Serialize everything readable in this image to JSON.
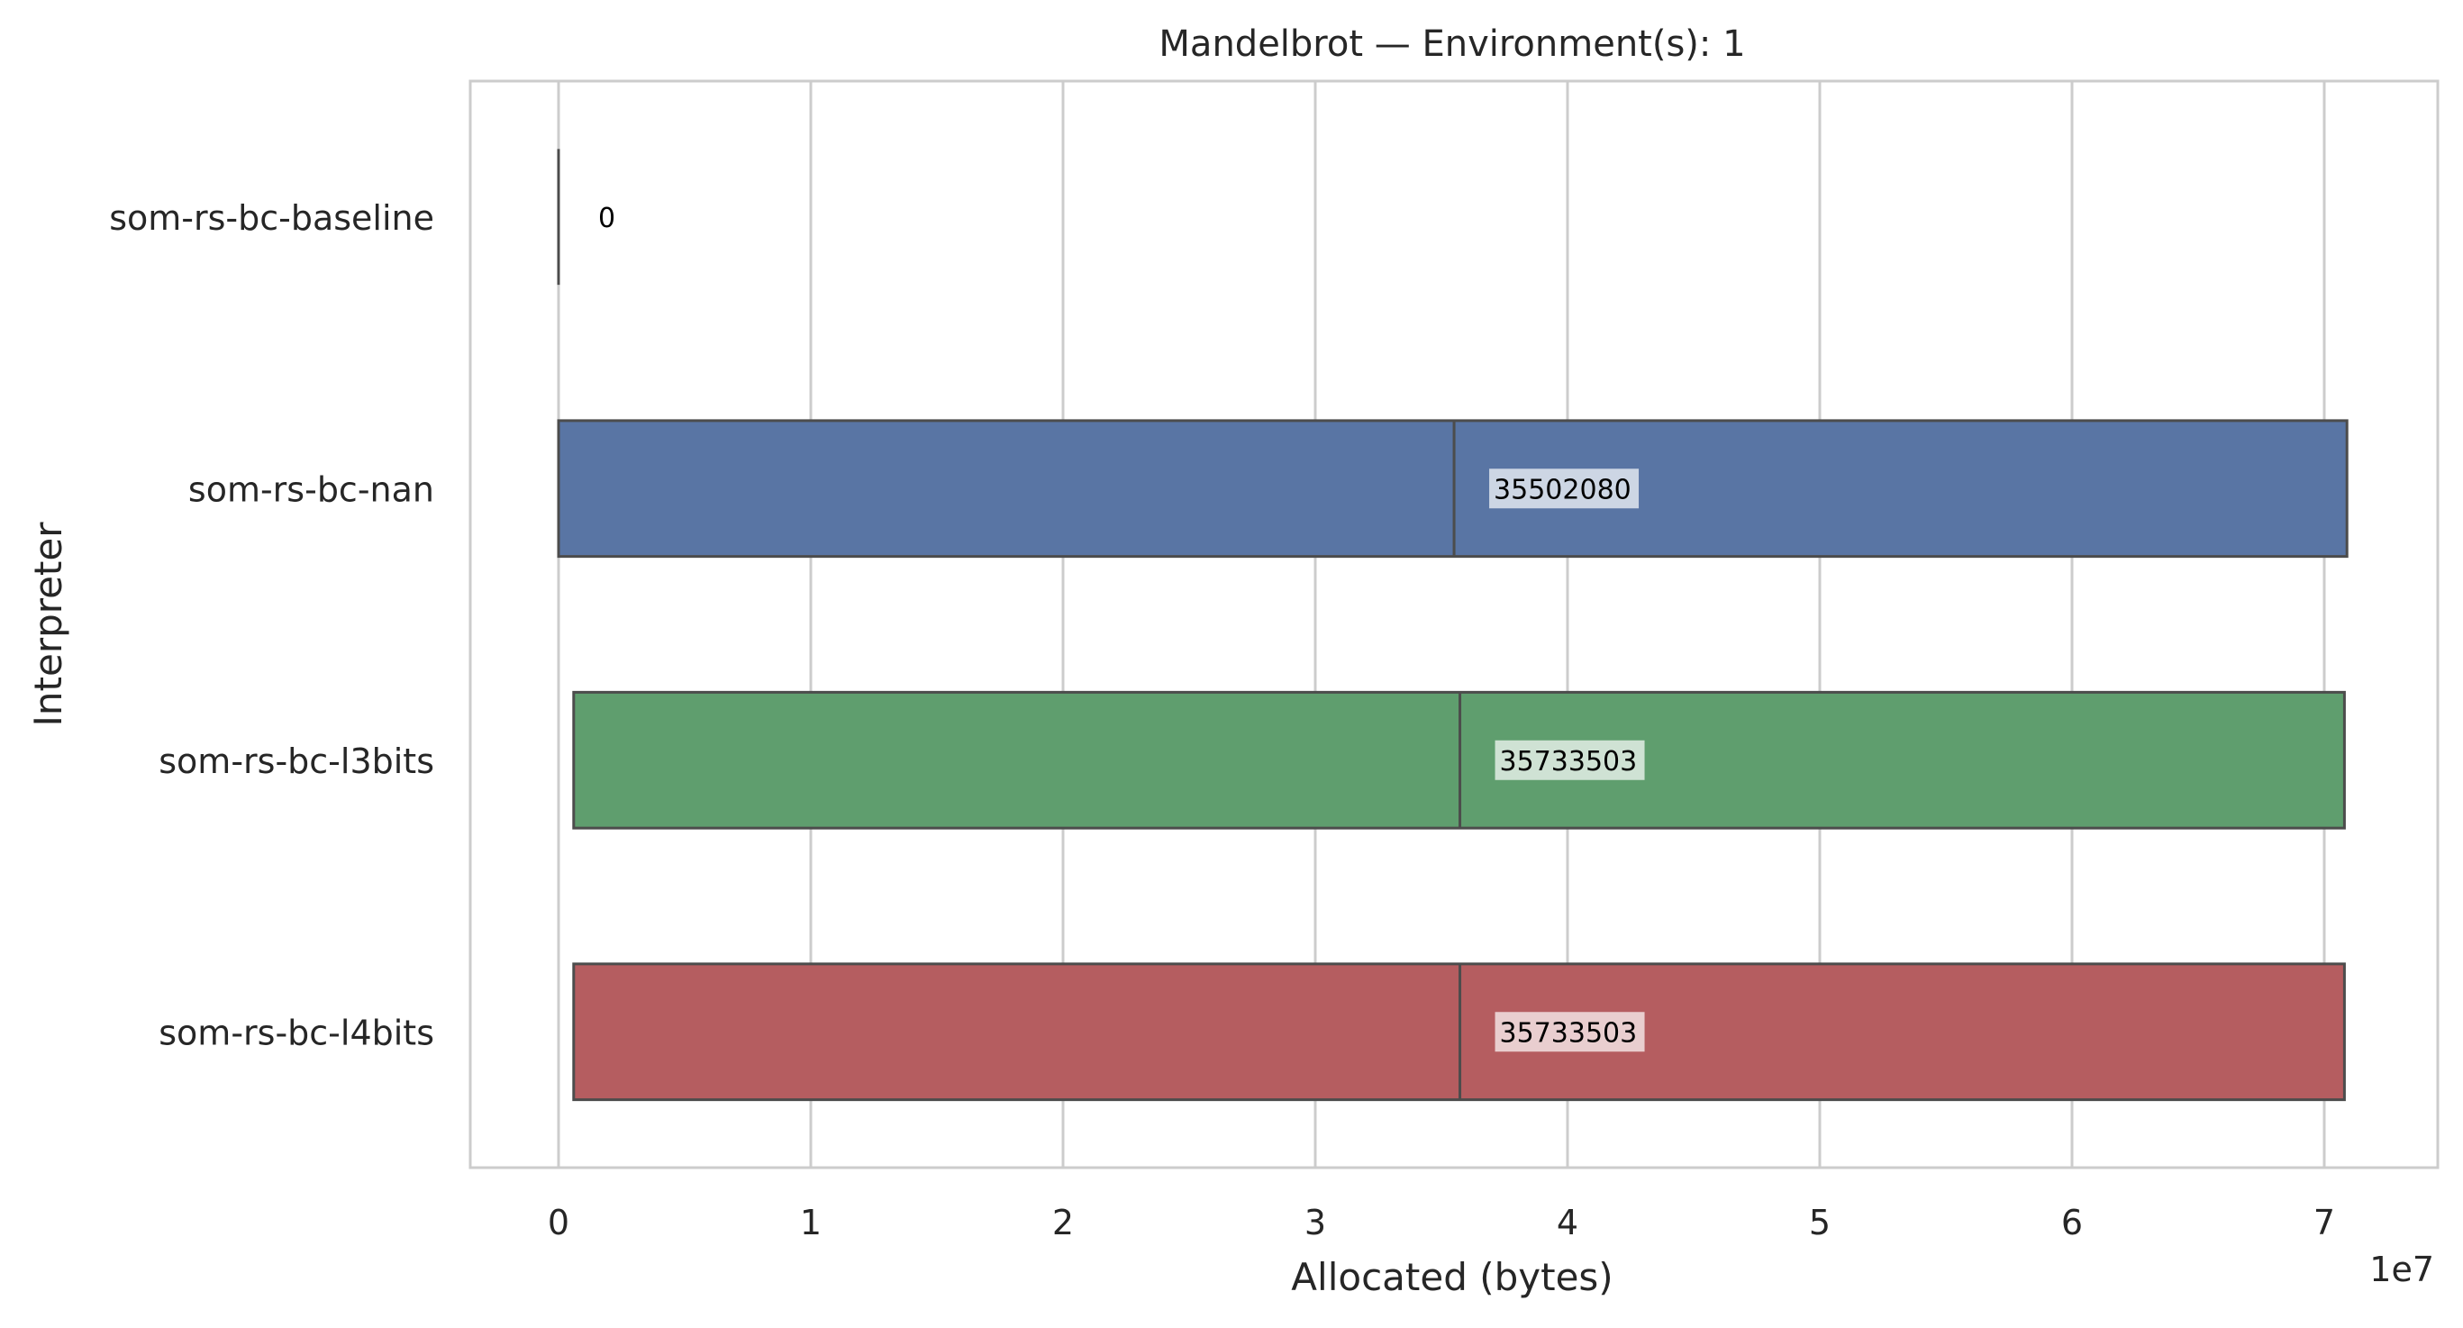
{
  "chart_data": {
    "type": "box",
    "orientation": "horizontal",
    "title": "Mandelbrot — Environment(s): 1",
    "xlabel": "Allocated (bytes)",
    "ylabel": "Interpreter",
    "x_multiplier_label": "1e7",
    "xlim": [
      -0.35,
      7.45
    ],
    "xticks": [
      0,
      1,
      2,
      3,
      4,
      5,
      6,
      7
    ],
    "xtick_labels": [
      "0",
      "1",
      "2",
      "3",
      "4",
      "5",
      "6",
      "7"
    ],
    "x_scale": 10000000,
    "grid": true,
    "categories": [
      "som-rs-bc-baseline",
      "som-rs-bc-nan",
      "som-rs-bc-l3bits",
      "som-rs-bc-l4bits"
    ],
    "series": [
      {
        "name": "som-rs-bc-baseline",
        "q1": 0,
        "median": 0,
        "q3": 0,
        "color": "#4c4c4c",
        "label": "0"
      },
      {
        "name": "som-rs-bc-nan",
        "q1": 0.0,
        "median": 3.550208,
        "q3": 7.09,
        "color": "#5975a4",
        "label": "35502080"
      },
      {
        "name": "som-rs-bc-l3bits",
        "q1": 0.06,
        "median": 3.5733503,
        "q3": 7.08,
        "color": "#5f9e6e",
        "label": "35733503"
      },
      {
        "name": "som-rs-bc-l4bits",
        "q1": 0.06,
        "median": 3.5733503,
        "q3": 7.08,
        "color": "#b55d60",
        "label": "35733503"
      }
    ]
  }
}
